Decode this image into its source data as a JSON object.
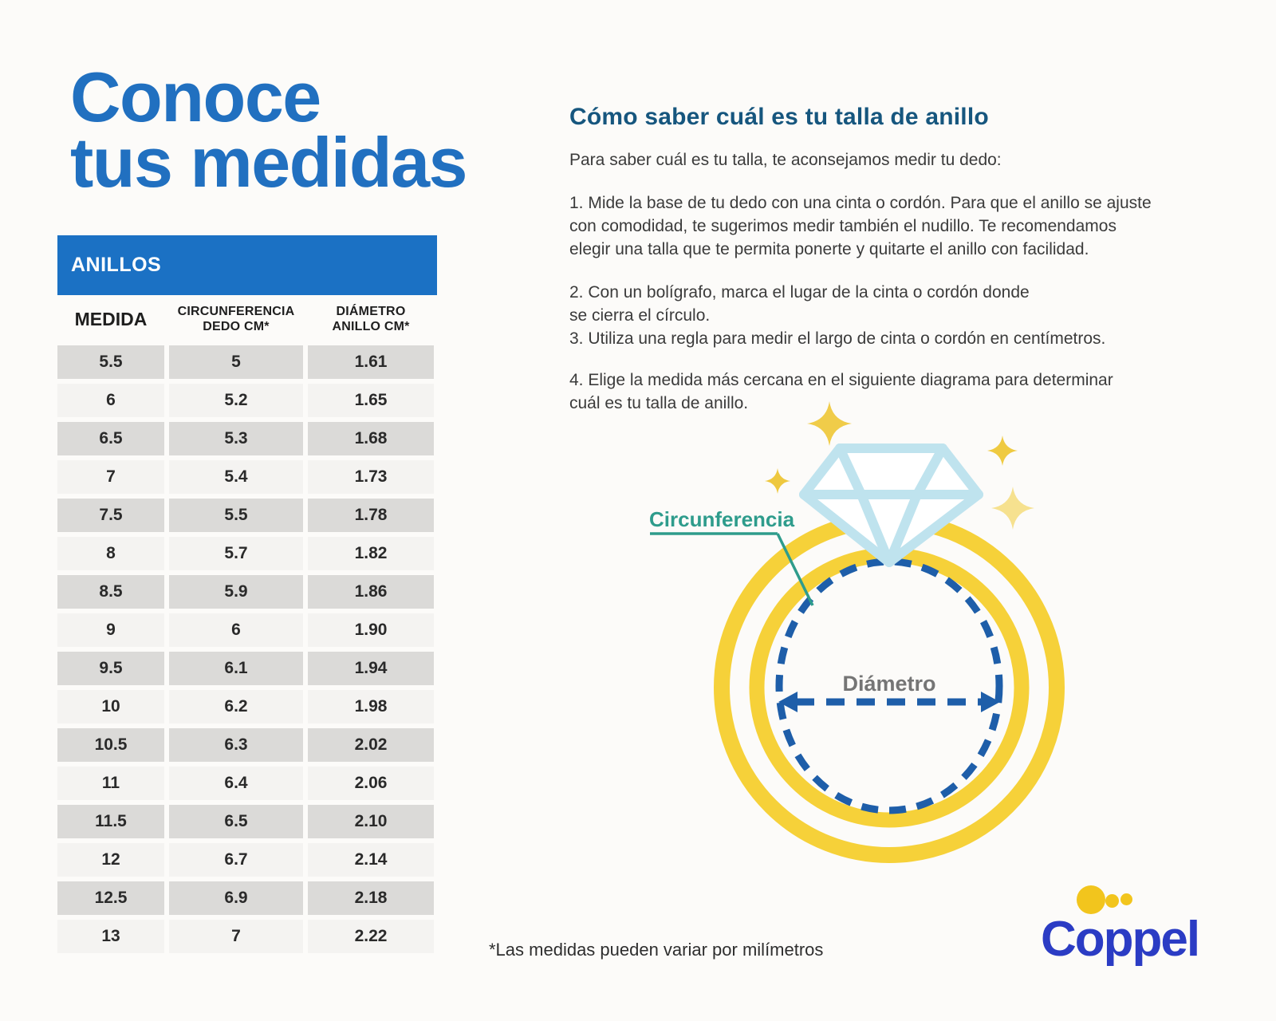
{
  "page": {
    "title_lines": [
      "Conoce",
      "tus medidas"
    ],
    "footnote": "*Las medidas pueden variar por milímetros"
  },
  "table": {
    "title": "ANILLOS",
    "columns": [
      {
        "line1": "MEDIDA",
        "line2": ""
      },
      {
        "line1": "CIRCUNFERENCIA",
        "line2": "DEDO CM*"
      },
      {
        "line1": "DIÁMETRO",
        "line2": "ANILLO CM*"
      }
    ],
    "rows": [
      [
        "5.5",
        "5",
        "1.61"
      ],
      [
        "6",
        "5.2",
        "1.65"
      ],
      [
        "6.5",
        "5.3",
        "1.68"
      ],
      [
        "7",
        "5.4",
        "1.73"
      ],
      [
        "7.5",
        "5.5",
        "1.78"
      ],
      [
        "8",
        "5.7",
        "1.82"
      ],
      [
        "8.5",
        "5.9",
        "1.86"
      ],
      [
        "9",
        "6",
        "1.90"
      ],
      [
        "9.5",
        "6.1",
        "1.94"
      ],
      [
        "10",
        "6.2",
        "1.98"
      ],
      [
        "10.5",
        "6.3",
        "2.02"
      ],
      [
        "11",
        "6.4",
        "2.06"
      ],
      [
        "11.5",
        "6.5",
        "2.10"
      ],
      [
        "12",
        "6.7",
        "2.14"
      ],
      [
        "12.5",
        "6.9",
        "2.18"
      ],
      [
        "13",
        "7",
        "2.22"
      ]
    ]
  },
  "guide": {
    "heading": "Cómo saber cuál es tu talla de anillo",
    "intro": "Para saber cuál es tu talla, te aconsejamos medir tu dedo:",
    "steps": [
      {
        "lines": [
          "1. Mide la base de tu dedo con una cinta o cordón. Para que el anillo se ajuste",
          "con comodidad, te sugerimos medir también el nudillo. Te recomendamos",
          "elegir una talla que te permita ponerte y quitarte el anillo con facilidad."
        ]
      },
      {
        "lines": [
          "2. Con un bolígrafo, marca el lugar de la cinta o cordón donde",
          "se cierra el círculo."
        ]
      },
      {
        "lines": [
          "3. Utiliza una regla para medir el largo de cinta o cordón en centímetros."
        ]
      },
      {
        "lines": [
          "4. Elige la medida más cercana en el siguiente diagrama para determinar",
          "cuál es tu talla de anillo."
        ]
      }
    ]
  },
  "diagram": {
    "circumference_label": "Circunferencia",
    "diameter_label": "Diámetro"
  },
  "brand": {
    "name": "Coppel"
  },
  "colors": {
    "title_blue": "#2170C0",
    "table_header_blue": "#1B71C4",
    "heading_blue": "#16567E",
    "teal": "#2E9C8C",
    "ring_yellow": "#F6D139",
    "pale_yellow": "#F6E18F",
    "diamond_blue": "#BFE3EE",
    "dashed_blue": "#1E5EA9",
    "diameter_gray": "#757575",
    "coppel_blue": "#2B3CC4",
    "coppel_yellow": "#F2C51D",
    "row_dark": "#DBDAD8",
    "row_light": "#F4F3F1"
  }
}
